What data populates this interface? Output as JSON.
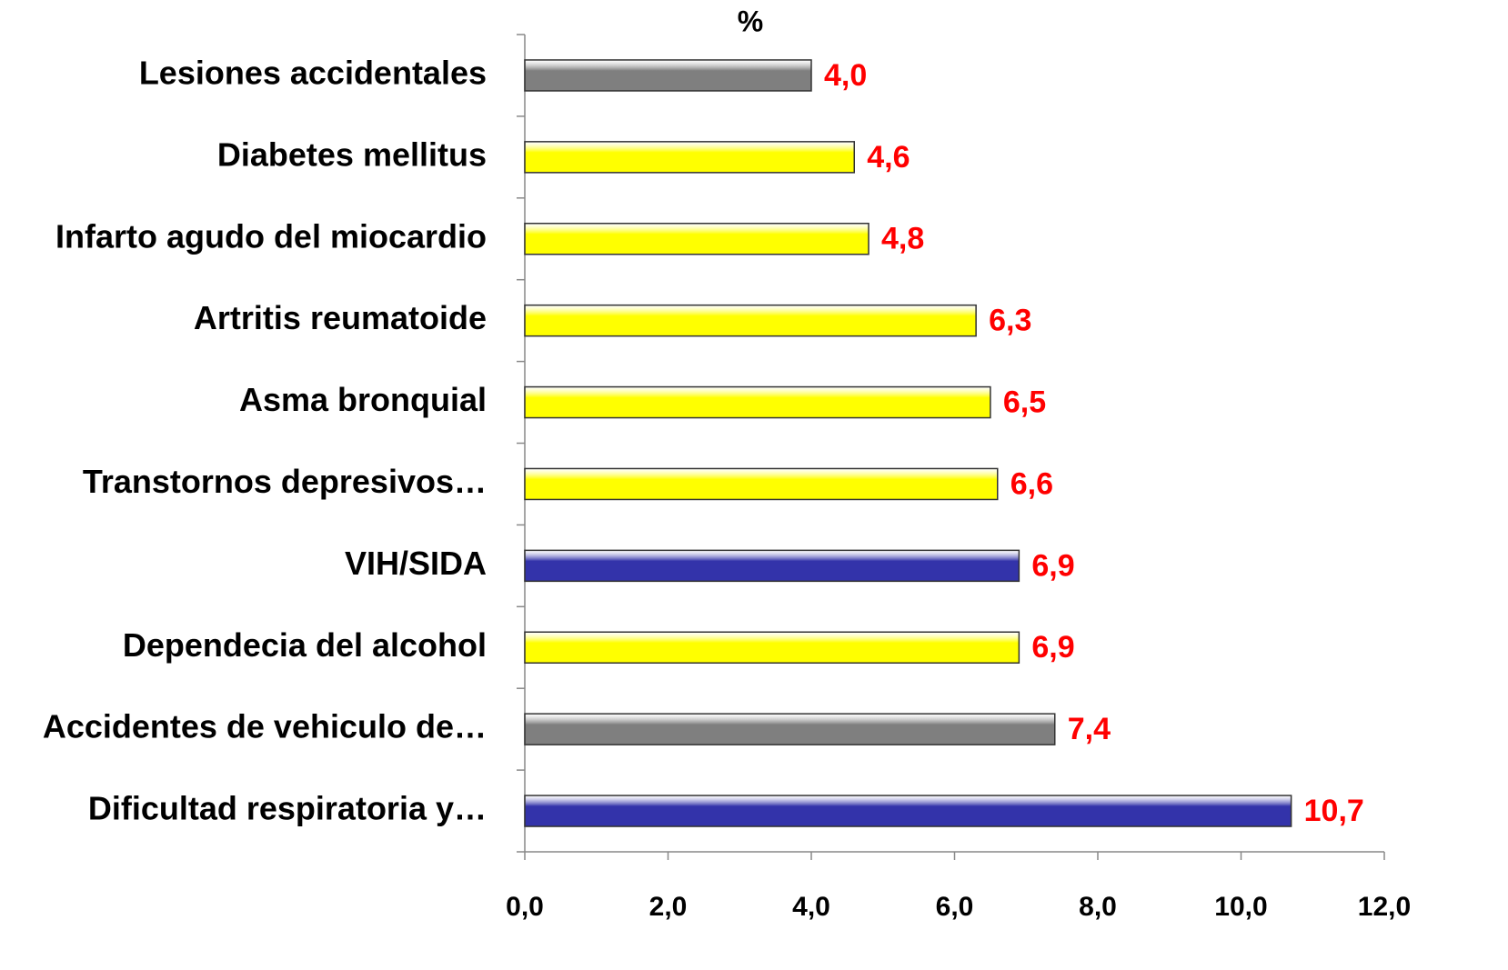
{
  "chart_data": {
    "type": "barh",
    "title": "%",
    "categories": [
      "Lesiones accidentales",
      "Diabetes mellitus",
      "Infarto agudo del miocardio",
      "Artritis reumatoide",
      "Asma bronquial",
      "Transtornos depresivos…",
      "VIH/SIDA",
      "Dependecia del alcohol",
      "Accidentes de vehiculo de…",
      "Dificultad respiratoria y…"
    ],
    "values": [
      4.0,
      4.6,
      4.8,
      6.3,
      6.5,
      6.6,
      6.9,
      6.9,
      7.4,
      10.7
    ],
    "value_labels": [
      "4,0",
      "4,6",
      "4,8",
      "6,3",
      "6,5",
      "6,6",
      "6,9",
      "6,9",
      "7,4",
      "10,7"
    ],
    "colors": [
      "#7f7f7f",
      "#ffff00",
      "#ffff00",
      "#ffff00",
      "#ffff00",
      "#ffff00",
      "#3333aa",
      "#ffff00",
      "#7f7f7f",
      "#3333aa"
    ],
    "value_label_color": "#ff0000",
    "xlim": [
      0,
      12
    ],
    "xticks": [
      {
        "value": 0,
        "label": "0,0"
      },
      {
        "value": 2,
        "label": "2,0"
      },
      {
        "value": 4,
        "label": "4,0"
      },
      {
        "value": 6,
        "label": "6,0"
      },
      {
        "value": 8,
        "label": "8,0"
      },
      {
        "value": 10,
        "label": "10,0"
      },
      {
        "value": 12,
        "label": "12,0"
      }
    ],
    "grid": false
  }
}
